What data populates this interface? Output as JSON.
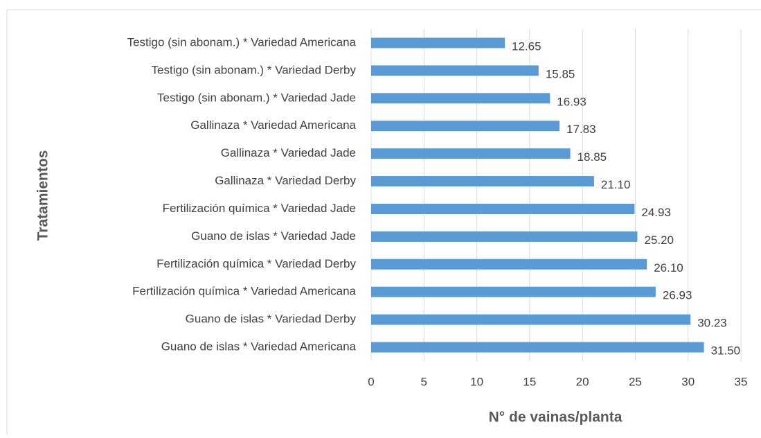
{
  "chart_data": {
    "type": "bar",
    "orientation": "horizontal",
    "xlabel": "N° de vainas/planta",
    "ylabel": "Tratamientos",
    "categories": [
      "Testigo (sin abonam.) * Variedad Americana",
      "Testigo (sin abonam.) * Variedad Derby",
      "Testigo (sin abonam.) * Variedad Jade",
      "Gallinaza * Variedad Americana",
      "Gallinaza * Variedad Jade",
      "Gallinaza * Variedad Derby",
      "Fertilización química * Variedad Jade",
      "Guano de islas * Variedad Jade",
      "Fertilización química * Variedad Derby",
      "Fertilización química * Variedad Americana",
      "Guano de islas * Variedad Derby",
      "Guano de islas * Variedad Americana"
    ],
    "values": [
      12.65,
      15.85,
      16.93,
      17.83,
      18.85,
      21.1,
      24.93,
      25.2,
      26.1,
      26.93,
      30.23,
      31.5
    ],
    "value_labels": [
      "12.65",
      "15.85",
      "16.93",
      "17.83",
      "18.85",
      "21.10",
      "24.93",
      "25.20",
      "26.10",
      "26.93",
      "30.23",
      "31.50"
    ],
    "color": "#5b9bd5",
    "xlim": [
      0,
      35
    ],
    "xticks": [
      0,
      5,
      10,
      15,
      20,
      25,
      30,
      35
    ],
    "grid": true
  }
}
